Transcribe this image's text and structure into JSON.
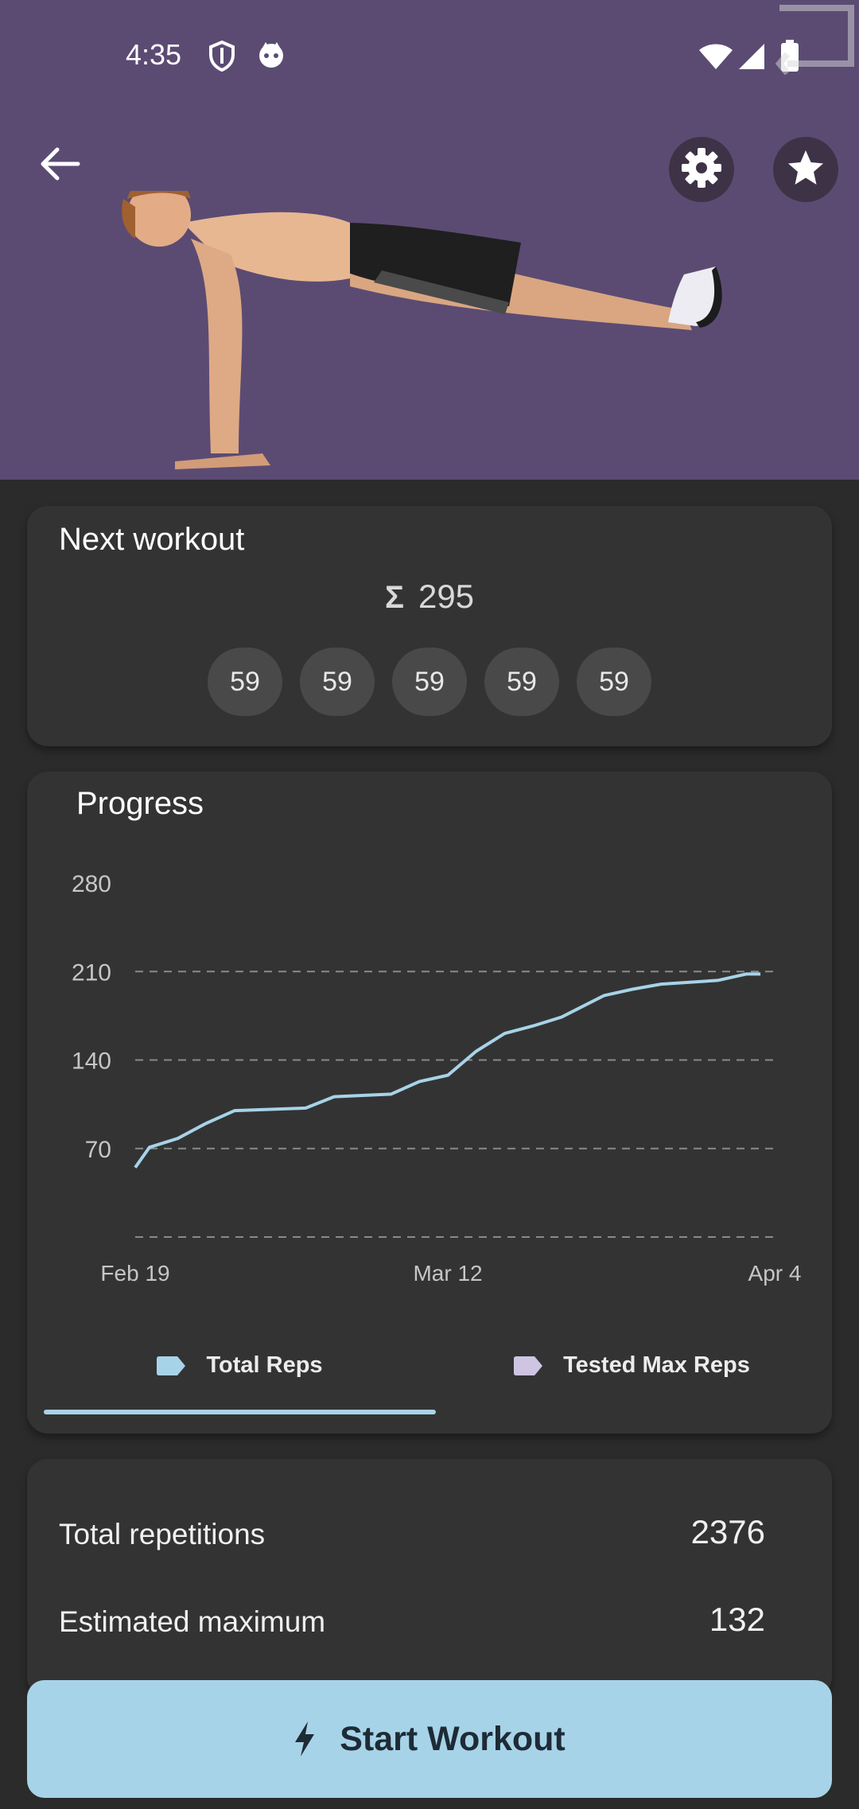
{
  "status_bar": {
    "time": "4:35",
    "icons": [
      "shield-icon",
      "cat-icon",
      "wifi-icon",
      "signal-icon",
      "battery-icon"
    ]
  },
  "header": {
    "back_icon": "arrow-left-icon",
    "settings_icon": "gear-icon",
    "favorite_icon": "star-icon",
    "image": "push-up-illustration"
  },
  "next_workout": {
    "title": "Next workout",
    "sum_symbol": "Σ",
    "total": "295",
    "sets": [
      "59",
      "59",
      "59",
      "59",
      "59"
    ]
  },
  "progress": {
    "title": "Progress",
    "legend": [
      {
        "label": "Total Reps",
        "color": "#a7d3e8",
        "selected": true
      },
      {
        "label": "Tested Max Reps",
        "color": "#cfc5e3",
        "selected": false
      }
    ]
  },
  "chart_data": {
    "type": "line",
    "title": "Progress",
    "x_tick_labels": [
      "Feb 19",
      "Mar 12",
      "Apr 4"
    ],
    "y_ticks": [
      70,
      140,
      210,
      280
    ],
    "ylim": [
      0,
      280
    ],
    "grid": true,
    "series": [
      {
        "name": "Total Reps",
        "color": "#a7d3e8",
        "x": [
          "Feb 19",
          "Feb 20",
          "Feb 22",
          "Feb 24",
          "Feb 26",
          "Mar 2",
          "Mar 4",
          "Mar 8",
          "Mar 10",
          "Mar 12",
          "Mar 14",
          "Mar 16",
          "Mar 18",
          "Mar 20",
          "Mar 23",
          "Mar 25",
          "Mar 27",
          "Mar 31",
          "Apr 2",
          "Apr 3"
        ],
        "values": [
          55,
          71,
          78,
          90,
          100,
          102,
          111,
          113,
          123,
          128,
          147,
          161,
          167,
          174,
          191,
          196,
          200,
          203,
          208,
          208
        ]
      }
    ]
  },
  "stats": {
    "total_label": "Total repetitions",
    "total_value": "2376",
    "estimated_label": "Estimated maximum",
    "estimated_value": "132"
  },
  "start_button": {
    "label": "Start Workout",
    "icon": "lightning-icon"
  }
}
